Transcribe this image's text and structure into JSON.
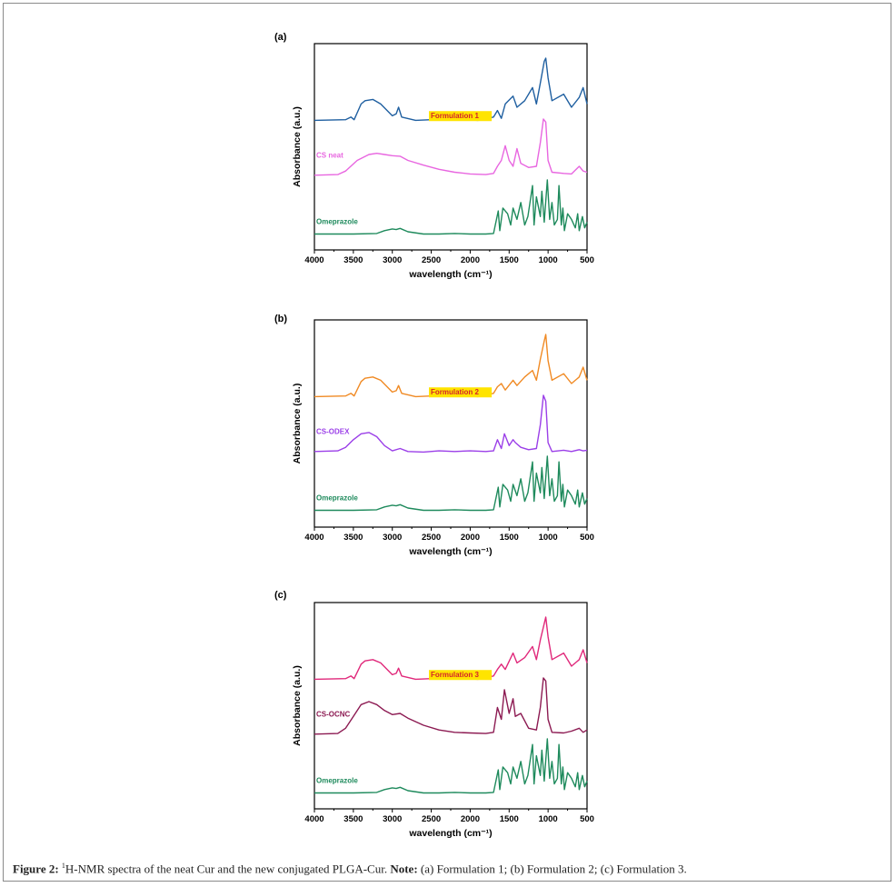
{
  "figure": {
    "caption_label": "Figure 2:",
    "caption_sup": "1",
    "caption_text": "H-NMR spectra of the neat Cur and the new conjugated PLGA-Cur.",
    "note_label": "Note:",
    "note_text": "(a) Formulation 1; (b) Formulation 2; (c) Formulation 3."
  },
  "chart_data": [
    {
      "type": "line",
      "panel_label": "(a)",
      "xlabel": "wavelength (cm⁻¹)",
      "ylabel": "Absorbance (a.u.)",
      "xlim": [
        4000,
        500
      ],
      "x_reversed": true,
      "xticks": [
        4000,
        3500,
        3000,
        2500,
        2000,
        1500,
        1000,
        500
      ],
      "yticks_shown": false,
      "series": [
        {
          "name": "Formulation 1",
          "color": "#1f5fa0",
          "label_highlight": "#ffe400",
          "label_text_color": "#d4232a",
          "x": [
            4000,
            3600,
            3530,
            3490,
            3400,
            3350,
            3250,
            3150,
            3000,
            2950,
            2920,
            2880,
            2700,
            2500,
            2300,
            2100,
            1900,
            1700,
            1650,
            1600,
            1550,
            1450,
            1400,
            1300,
            1200,
            1150,
            1100,
            1050,
            1030,
            1000,
            950,
            800,
            700,
            600,
            550,
            500
          ],
          "y": [
            0.05,
            0.06,
            0.1,
            0.06,
            0.3,
            0.35,
            0.37,
            0.3,
            0.12,
            0.15,
            0.25,
            0.1,
            0.05,
            0.06,
            0.08,
            0.06,
            0.05,
            0.1,
            0.2,
            0.08,
            0.3,
            0.42,
            0.25,
            0.35,
            0.55,
            0.3,
            0.62,
            0.95,
            1.0,
            0.7,
            0.35,
            0.45,
            0.25,
            0.4,
            0.55,
            0.3
          ]
        },
        {
          "name": "CS neat",
          "color": "#e866e0",
          "label_highlight": null,
          "label_text_color": "#e866e0",
          "x": [
            4000,
            3700,
            3600,
            3450,
            3300,
            3200,
            3100,
            3000,
            2900,
            2800,
            2600,
            2400,
            2200,
            2000,
            1800,
            1700,
            1650,
            1600,
            1550,
            1500,
            1450,
            1400,
            1350,
            1250,
            1150,
            1100,
            1060,
            1030,
            1000,
            950,
            800,
            700,
            600,
            550,
            500
          ],
          "y": [
            0.05,
            0.06,
            0.12,
            0.3,
            0.4,
            0.42,
            0.4,
            0.38,
            0.37,
            0.3,
            0.22,
            0.15,
            0.1,
            0.07,
            0.06,
            0.08,
            0.2,
            0.3,
            0.55,
            0.3,
            0.2,
            0.5,
            0.25,
            0.18,
            0.2,
            0.6,
            1.0,
            0.95,
            0.3,
            0.1,
            0.08,
            0.07,
            0.2,
            0.12,
            0.1
          ]
        },
        {
          "name": "Omeprazole",
          "color": "#1e8a5c",
          "label_highlight": null,
          "label_text_color": "#1e8a5c",
          "x": [
            4000,
            3500,
            3200,
            3100,
            3000,
            2950,
            2900,
            2800,
            2600,
            2400,
            2200,
            2000,
            1800,
            1700,
            1640,
            1620,
            1580,
            1520,
            1480,
            1450,
            1400,
            1350,
            1300,
            1260,
            1200,
            1180,
            1150,
            1100,
            1080,
            1050,
            1010,
            980,
            950,
            920,
            880,
            860,
            830,
            810,
            790,
            750,
            700,
            650,
            620,
            600,
            560,
            530,
            500
          ],
          "y": [
            0.04,
            0.04,
            0.05,
            0.1,
            0.13,
            0.12,
            0.14,
            0.08,
            0.04,
            0.04,
            0.05,
            0.04,
            0.04,
            0.05,
            0.45,
            0.1,
            0.5,
            0.4,
            0.2,
            0.5,
            0.3,
            0.6,
            0.2,
            0.35,
            0.9,
            0.2,
            0.7,
            0.35,
            0.8,
            0.25,
            1.0,
            0.3,
            0.6,
            0.2,
            0.3,
            0.9,
            0.2,
            0.5,
            0.1,
            0.4,
            0.3,
            0.15,
            0.4,
            0.1,
            0.35,
            0.15,
            0.25
          ]
        }
      ]
    },
    {
      "type": "line",
      "panel_label": "(b)",
      "xlabel": "wavelength (cm⁻¹)",
      "ylabel": "Absorbance (a.u.)",
      "xlim": [
        4000,
        500
      ],
      "x_reversed": true,
      "xticks": [
        4000,
        3500,
        3000,
        2500,
        2000,
        1500,
        1000,
        500
      ],
      "yticks_shown": false,
      "series": [
        {
          "name": "Formulation 2",
          "color": "#f08a24",
          "label_highlight": "#ffe400",
          "label_text_color": "#d4232a",
          "x": [
            4000,
            3600,
            3530,
            3490,
            3400,
            3350,
            3250,
            3150,
            3000,
            2950,
            2920,
            2880,
            2700,
            2500,
            2300,
            2100,
            1900,
            1700,
            1650,
            1600,
            1550,
            1450,
            1400,
            1300,
            1200,
            1150,
            1100,
            1050,
            1030,
            1000,
            950,
            800,
            700,
            600,
            550,
            500
          ],
          "y": [
            0.05,
            0.06,
            0.1,
            0.06,
            0.28,
            0.33,
            0.35,
            0.3,
            0.12,
            0.14,
            0.22,
            0.1,
            0.05,
            0.06,
            0.08,
            0.06,
            0.05,
            0.1,
            0.2,
            0.25,
            0.15,
            0.3,
            0.22,
            0.35,
            0.45,
            0.3,
            0.62,
            0.9,
            1.0,
            0.6,
            0.3,
            0.4,
            0.25,
            0.35,
            0.5,
            0.3
          ]
        },
        {
          "name": "CS-ODEX",
          "color": "#9b3fe8",
          "label_highlight": null,
          "label_text_color": "#9b3fe8",
          "x": [
            4000,
            3700,
            3600,
            3500,
            3400,
            3300,
            3200,
            3100,
            3000,
            2900,
            2800,
            2600,
            2400,
            2200,
            2000,
            1800,
            1700,
            1650,
            1600,
            1560,
            1500,
            1450,
            1420,
            1350,
            1250,
            1150,
            1100,
            1060,
            1030,
            1000,
            950,
            800,
            700,
            600,
            550,
            500
          ],
          "y": [
            0.05,
            0.06,
            0.12,
            0.25,
            0.35,
            0.37,
            0.3,
            0.15,
            0.06,
            0.1,
            0.05,
            0.04,
            0.06,
            0.05,
            0.06,
            0.05,
            0.06,
            0.25,
            0.1,
            0.35,
            0.15,
            0.25,
            0.2,
            0.12,
            0.08,
            0.1,
            0.5,
            1.0,
            0.9,
            0.2,
            0.05,
            0.07,
            0.05,
            0.08,
            0.06,
            0.07
          ]
        },
        {
          "name": "Omeprazole",
          "color": "#1e8a5c",
          "label_highlight": null,
          "label_text_color": "#1e8a5c",
          "x": [
            4000,
            3500,
            3200,
            3100,
            3000,
            2950,
            2900,
            2800,
            2600,
            2400,
            2200,
            2000,
            1800,
            1700,
            1640,
            1620,
            1580,
            1520,
            1480,
            1450,
            1400,
            1350,
            1300,
            1260,
            1200,
            1180,
            1150,
            1100,
            1080,
            1050,
            1010,
            980,
            950,
            920,
            880,
            860,
            830,
            810,
            790,
            750,
            700,
            650,
            620,
            600,
            560,
            530,
            500
          ],
          "y": [
            0.04,
            0.04,
            0.05,
            0.1,
            0.13,
            0.12,
            0.14,
            0.08,
            0.04,
            0.04,
            0.05,
            0.04,
            0.04,
            0.05,
            0.45,
            0.1,
            0.5,
            0.4,
            0.2,
            0.5,
            0.3,
            0.6,
            0.2,
            0.35,
            0.9,
            0.2,
            0.7,
            0.35,
            0.8,
            0.25,
            1.0,
            0.3,
            0.6,
            0.2,
            0.3,
            0.9,
            0.2,
            0.5,
            0.1,
            0.4,
            0.3,
            0.15,
            0.4,
            0.1,
            0.35,
            0.15,
            0.25
          ]
        }
      ]
    },
    {
      "type": "line",
      "panel_label": "(c)",
      "xlabel": "wavelength (cm⁻¹)",
      "ylabel": "Absorbance (a.u.)",
      "xlim": [
        4000,
        500
      ],
      "x_reversed": true,
      "xticks": [
        4000,
        3500,
        3000,
        2500,
        2000,
        1500,
        1000,
        500
      ],
      "yticks_shown": false,
      "series": [
        {
          "name": "Formulation 3",
          "color": "#e0287a",
          "label_highlight": "#ffe400",
          "label_text_color": "#d4232a",
          "x": [
            4000,
            3600,
            3530,
            3490,
            3400,
            3350,
            3250,
            3150,
            3000,
            2950,
            2920,
            2880,
            2700,
            2500,
            2300,
            2100,
            1900,
            1700,
            1650,
            1600,
            1550,
            1450,
            1400,
            1300,
            1200,
            1150,
            1100,
            1050,
            1030,
            1000,
            950,
            800,
            700,
            600,
            550,
            500
          ],
          "y": [
            0.05,
            0.06,
            0.1,
            0.06,
            0.28,
            0.33,
            0.35,
            0.3,
            0.12,
            0.14,
            0.22,
            0.1,
            0.05,
            0.06,
            0.08,
            0.06,
            0.05,
            0.1,
            0.2,
            0.28,
            0.2,
            0.45,
            0.3,
            0.38,
            0.55,
            0.35,
            0.65,
            0.9,
            1.0,
            0.7,
            0.35,
            0.45,
            0.25,
            0.35,
            0.5,
            0.3
          ]
        },
        {
          "name": "CS-OCNC",
          "color": "#8c1a52",
          "label_highlight": null,
          "label_text_color": "#8c1a52",
          "x": [
            4000,
            3700,
            3600,
            3500,
            3400,
            3300,
            3200,
            3100,
            3000,
            2900,
            2800,
            2600,
            2400,
            2200,
            2000,
            1800,
            1700,
            1650,
            1600,
            1560,
            1500,
            1450,
            1420,
            1350,
            1250,
            1150,
            1100,
            1060,
            1030,
            1000,
            950,
            800,
            700,
            600,
            550,
            500
          ],
          "y": [
            0.05,
            0.06,
            0.15,
            0.35,
            0.55,
            0.6,
            0.55,
            0.45,
            0.38,
            0.4,
            0.32,
            0.2,
            0.12,
            0.08,
            0.07,
            0.06,
            0.08,
            0.5,
            0.3,
            0.8,
            0.4,
            0.65,
            0.35,
            0.4,
            0.15,
            0.12,
            0.5,
            1.0,
            0.95,
            0.3,
            0.08,
            0.07,
            0.1,
            0.15,
            0.08,
            0.12
          ]
        },
        {
          "name": "Omeprazole",
          "color": "#1e8a5c",
          "label_highlight": null,
          "label_text_color": "#1e8a5c",
          "x": [
            4000,
            3500,
            3200,
            3100,
            3000,
            2950,
            2900,
            2800,
            2600,
            2400,
            2200,
            2000,
            1800,
            1700,
            1640,
            1620,
            1580,
            1520,
            1480,
            1450,
            1400,
            1350,
            1300,
            1260,
            1200,
            1180,
            1150,
            1100,
            1080,
            1050,
            1010,
            980,
            950,
            920,
            880,
            860,
            830,
            810,
            790,
            750,
            700,
            650,
            620,
            600,
            560,
            530,
            500
          ],
          "y": [
            0.04,
            0.04,
            0.05,
            0.1,
            0.13,
            0.12,
            0.14,
            0.08,
            0.04,
            0.04,
            0.05,
            0.04,
            0.04,
            0.05,
            0.45,
            0.1,
            0.5,
            0.4,
            0.2,
            0.5,
            0.3,
            0.6,
            0.2,
            0.35,
            0.9,
            0.2,
            0.7,
            0.35,
            0.8,
            0.25,
            1.0,
            0.3,
            0.6,
            0.2,
            0.3,
            0.9,
            0.2,
            0.5,
            0.1,
            0.4,
            0.3,
            0.15,
            0.4,
            0.1,
            0.35,
            0.15,
            0.25
          ]
        }
      ]
    }
  ]
}
